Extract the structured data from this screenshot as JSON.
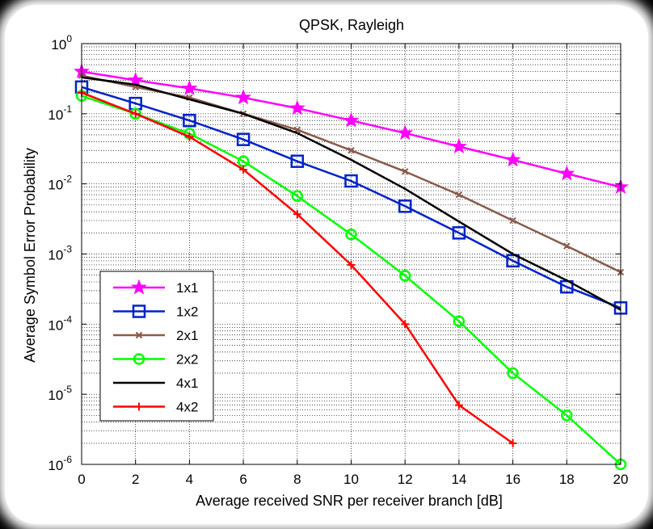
{
  "chart_data": {
    "type": "line",
    "title": "QPSK, Rayleigh",
    "xlabel": "Average received SNR per receiver branch [dB]",
    "ylabel": "Average Symbol Error Probability",
    "xlim": [
      0,
      20
    ],
    "ylim": [
      1e-06,
      1
    ],
    "y_scale": "log",
    "grid": true,
    "legend_position": "bottom-left",
    "x_ticks": [
      0,
      2,
      4,
      6,
      8,
      10,
      12,
      14,
      16,
      18,
      20
    ],
    "y_ticks": [
      {
        "value": 1,
        "base": "10",
        "exp": "0"
      },
      {
        "value": 0.1,
        "base": "10",
        "exp": "-1"
      },
      {
        "value": 0.01,
        "base": "10",
        "exp": "-2"
      },
      {
        "value": 0.001,
        "base": "10",
        "exp": "-3"
      },
      {
        "value": 0.0001,
        "base": "10",
        "exp": "-4"
      },
      {
        "value": 1e-05,
        "base": "10",
        "exp": "-5"
      },
      {
        "value": 1e-06,
        "base": "10",
        "exp": "-6"
      }
    ],
    "series": [
      {
        "name": "1x1",
        "color": "#ff00ff",
        "marker": "star",
        "x": [
          0,
          2,
          4,
          6,
          8,
          10,
          12,
          14,
          16,
          18,
          20
        ],
        "y": [
          0.4,
          0.3,
          0.23,
          0.17,
          0.12,
          0.08,
          0.053,
          0.034,
          0.022,
          0.014,
          0.009
        ]
      },
      {
        "name": "1x2",
        "color": "#0022cc",
        "marker": "square",
        "x": [
          0,
          2,
          4,
          6,
          8,
          10,
          12,
          14,
          16,
          18,
          20
        ],
        "y": [
          0.24,
          0.14,
          0.08,
          0.043,
          0.021,
          0.011,
          0.0048,
          0.002,
          0.0008,
          0.00034,
          0.00017
        ]
      },
      {
        "name": "2x1",
        "color": "#8b5a4a",
        "marker": "x",
        "x": [
          0,
          2,
          4,
          6,
          8,
          10,
          12,
          14,
          16,
          18,
          20
        ],
        "y": [
          0.35,
          0.24,
          0.17,
          0.1,
          0.059,
          0.03,
          0.015,
          0.007,
          0.003,
          0.0013,
          0.00055
        ]
      },
      {
        "name": "2x2",
        "color": "#00ff00",
        "marker": "circle",
        "x": [
          0,
          2,
          4,
          6,
          8,
          10,
          12,
          14,
          16,
          18,
          20
        ],
        "y": [
          0.18,
          0.1,
          0.052,
          0.021,
          0.0067,
          0.0019,
          0.00049,
          0.00011,
          2e-05,
          5e-06,
          1e-06
        ]
      },
      {
        "name": "4x1",
        "color": "#000000",
        "marker": "none",
        "x": [
          0,
          2,
          4,
          6,
          8,
          10,
          12,
          14,
          16,
          18,
          20
        ],
        "y": [
          0.33,
          0.26,
          0.16,
          0.1,
          0.053,
          0.022,
          0.0085,
          0.0029,
          0.001,
          0.00042,
          0.00016
        ]
      },
      {
        "name": "4x2",
        "color": "#ff0000",
        "marker": "plus",
        "x": [
          0,
          2,
          4,
          6,
          8,
          10,
          12,
          14,
          16
        ],
        "y": [
          0.2,
          0.1,
          0.047,
          0.016,
          0.0037,
          0.0007,
          0.0001,
          7e-06,
          2e-06
        ]
      }
    ]
  }
}
